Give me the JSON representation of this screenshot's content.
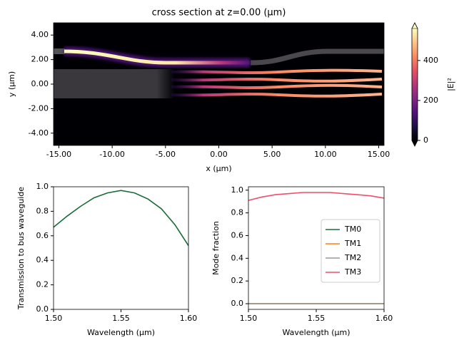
{
  "chart_data": [
    {
      "type": "heatmap",
      "title": "cross section at z=0.00 (μm)",
      "x_label": "x (μm)",
      "y_label": "y (μm)",
      "xlim": [
        -15.5,
        15.5
      ],
      "ylim": [
        -5,
        5
      ],
      "xticks": [
        {
          "value": -15,
          "label": "-15.00"
        },
        {
          "value": -10,
          "label": "-10.00"
        },
        {
          "value": -5,
          "label": "-5.00"
        },
        {
          "value": 0,
          "label": "0.00"
        },
        {
          "value": 5,
          "label": "5.00"
        },
        {
          "value": 10,
          "label": "10.00"
        },
        {
          "value": 15,
          "label": "15.00"
        }
      ],
      "yticks": [
        {
          "value": 4,
          "label": "4.00"
        },
        {
          "value": 2,
          "label": "2.00"
        },
        {
          "value": 0,
          "label": "0.00"
        },
        {
          "value": -2,
          "label": "-2.00"
        },
        {
          "value": -4,
          "label": "-4.00"
        }
      ],
      "colormap": "magma",
      "colorbar": {
        "label": "|E|²",
        "lim": [
          0,
          560
        ],
        "ticks": [
          0,
          200,
          400
        ]
      }
    },
    {
      "type": "line",
      "x_label": "Wavelength (μm)",
      "y_label": "Transmission to bus waveguide",
      "x": [
        1.5,
        1.51,
        1.52,
        1.53,
        1.54,
        1.55,
        1.56,
        1.57,
        1.58,
        1.59,
        1.6
      ],
      "series": [
        {
          "name": "Transmission",
          "color": "#1a6b3a",
          "values": [
            0.67,
            0.76,
            0.84,
            0.91,
            0.95,
            0.97,
            0.95,
            0.9,
            0.82,
            0.69,
            0.52
          ]
        }
      ],
      "xlim": [
        1.5,
        1.6
      ],
      "xticks": [
        {
          "value": 1.5,
          "label": "1.50"
        },
        {
          "value": 1.55,
          "label": "1.55"
        },
        {
          "value": 1.6,
          "label": "1.60"
        }
      ],
      "ylim": [
        0,
        1
      ],
      "yticks": [
        {
          "value": 0,
          "label": "0.0"
        },
        0.2,
        0.4,
        0.6,
        0.8,
        {
          "value": 1,
          "label": "1.0"
        }
      ]
    },
    {
      "type": "line",
      "x_label": "Wavelength (μm)",
      "y_label": "Mode fraction",
      "legend": "center right",
      "x": [
        1.5,
        1.51,
        1.52,
        1.53,
        1.54,
        1.55,
        1.56,
        1.57,
        1.58,
        1.59,
        1.6
      ],
      "series": [
        {
          "name": "TM0",
          "color": "#1a6b3a",
          "values": [
            0,
            0,
            0,
            0,
            0,
            0,
            0,
            0,
            0,
            0,
            0
          ]
        },
        {
          "name": "TM1",
          "color": "#ff7f0e",
          "values": [
            0,
            0,
            0,
            0,
            0,
            0,
            0,
            0,
            0,
            0,
            0
          ]
        },
        {
          "name": "TM2",
          "color": "#999999",
          "values": [
            0,
            0,
            0,
            0,
            0,
            0,
            0,
            0,
            0,
            0,
            0
          ]
        },
        {
          "name": "TM3",
          "color": "#ef4f6a",
          "values": [
            0.91,
            0.94,
            0.96,
            0.97,
            0.98,
            0.98,
            0.98,
            0.97,
            0.96,
            0.95,
            0.93
          ]
        }
      ],
      "xlim": [
        1.5,
        1.6
      ],
      "xticks": [
        {
          "value": 1.5,
          "label": "1.50"
        },
        {
          "value": 1.55,
          "label": "1.55"
        },
        {
          "value": 1.6,
          "label": "1.60"
        }
      ],
      "ylim": [
        -0.05,
        1.03
      ],
      "yticks": [
        {
          "value": 0,
          "label": "0.0"
        },
        0.2,
        0.4,
        0.6,
        0.8,
        {
          "value": 1,
          "label": "1.0"
        }
      ]
    }
  ]
}
